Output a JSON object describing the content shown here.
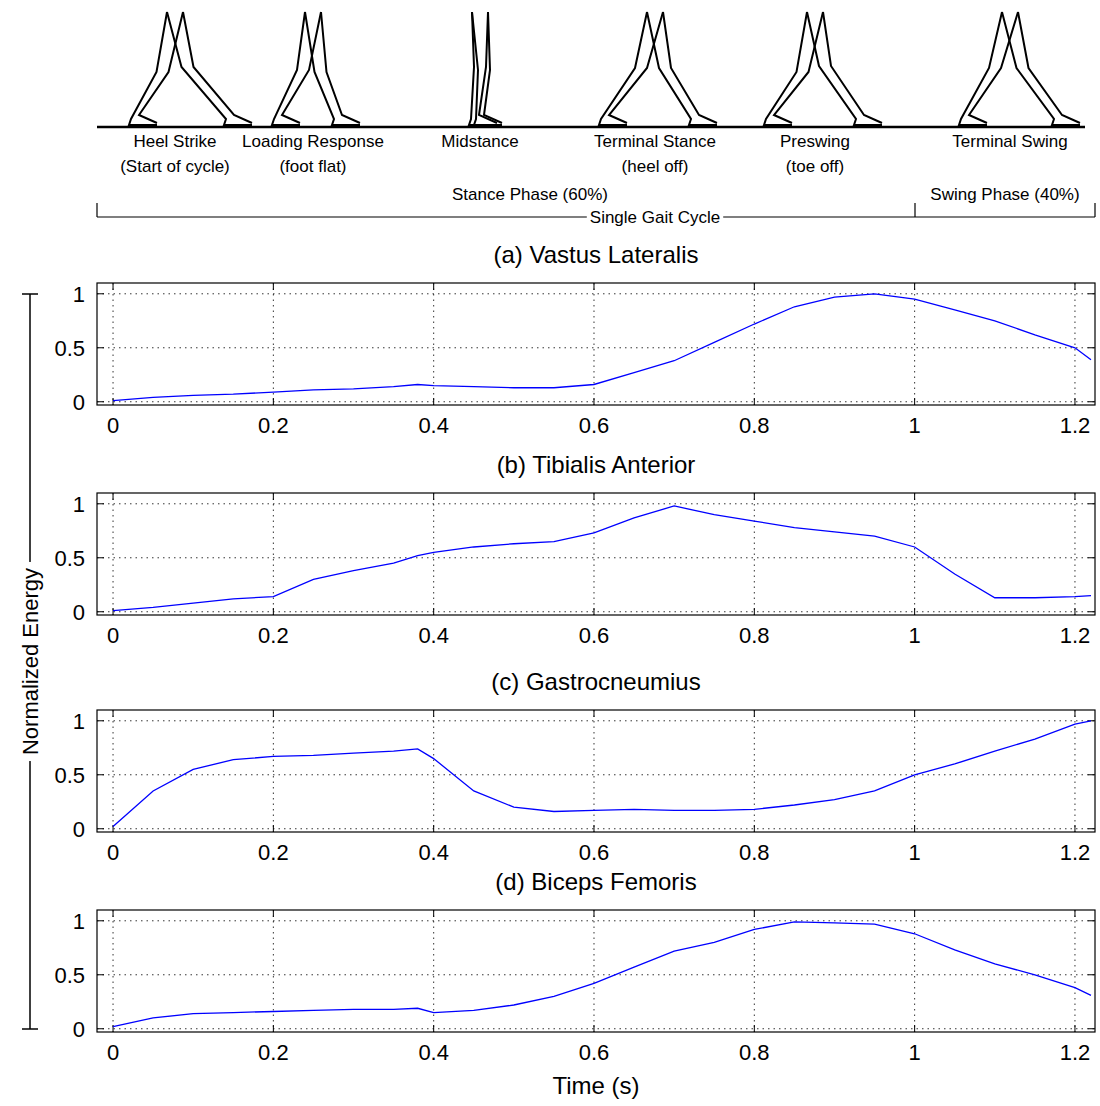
{
  "gait_diagram": {
    "phases": [
      {
        "label": "Heel Strike",
        "sublabel": "(Start of cycle)"
      },
      {
        "label": "Loading Response",
        "sublabel": "(foot flat)"
      },
      {
        "label": "Midstance"
      },
      {
        "label": "Terminal Stance",
        "sublabel": "(heel off)"
      },
      {
        "label": "Preswing",
        "sublabel": "(toe off)"
      },
      {
        "label": "Terminal Swing"
      }
    ],
    "stance_label": "Stance Phase (60%)",
    "swing_label": "Swing Phase (40%)",
    "cycle_label": "Single Gait Cycle"
  },
  "shared_y_label": "Normalized Energy",
  "chart_data": [
    {
      "type": "line",
      "title": "(a) Vastus Lateralis",
      "x": [
        0,
        0.05,
        0.1,
        0.15,
        0.2,
        0.25,
        0.3,
        0.35,
        0.38,
        0.4,
        0.45,
        0.5,
        0.55,
        0.6,
        0.65,
        0.7,
        0.75,
        0.8,
        0.85,
        0.9,
        0.95,
        1.0,
        1.05,
        1.1,
        1.15,
        1.2,
        1.22
      ],
      "series": [
        {
          "name": "Vastus Lateralis",
          "color": "#0000ff",
          "values": [
            0.01,
            0.04,
            0.06,
            0.07,
            0.09,
            0.11,
            0.12,
            0.14,
            0.16,
            0.15,
            0.14,
            0.13,
            0.13,
            0.16,
            0.27,
            0.38,
            0.55,
            0.72,
            0.88,
            0.97,
            1.0,
            0.95,
            0.85,
            0.75,
            0.62,
            0.5,
            0.39
          ]
        }
      ],
      "xlim": [
        -0.02,
        1.225
      ],
      "ylim": [
        -0.03,
        1.1
      ],
      "xticks": [
        0,
        0.2,
        0.4,
        0.6,
        0.8,
        1,
        1.2
      ],
      "yticks": [
        0,
        0.5,
        1
      ],
      "grid": true
    },
    {
      "type": "line",
      "title": "(b) Tibialis Anterior",
      "x": [
        0,
        0.05,
        0.1,
        0.15,
        0.2,
        0.25,
        0.3,
        0.35,
        0.38,
        0.4,
        0.45,
        0.5,
        0.55,
        0.6,
        0.65,
        0.7,
        0.75,
        0.8,
        0.85,
        0.9,
        0.95,
        1.0,
        1.05,
        1.1,
        1.15,
        1.2,
        1.22
      ],
      "series": [
        {
          "name": "Tibialis Anterior",
          "color": "#0000ff",
          "values": [
            0.01,
            0.04,
            0.08,
            0.12,
            0.14,
            0.3,
            0.38,
            0.45,
            0.52,
            0.55,
            0.6,
            0.63,
            0.65,
            0.73,
            0.87,
            0.98,
            0.9,
            0.84,
            0.78,
            0.74,
            0.7,
            0.6,
            0.35,
            0.13,
            0.13,
            0.14,
            0.15
          ]
        }
      ],
      "xlim": [
        -0.02,
        1.225
      ],
      "ylim": [
        -0.03,
        1.1
      ],
      "xticks": [
        0,
        0.2,
        0.4,
        0.6,
        0.8,
        1,
        1.2
      ],
      "yticks": [
        0,
        0.5,
        1
      ],
      "grid": true
    },
    {
      "type": "line",
      "title": "(c) Gastrocneumius",
      "x": [
        0,
        0.05,
        0.1,
        0.15,
        0.2,
        0.25,
        0.3,
        0.35,
        0.38,
        0.4,
        0.45,
        0.5,
        0.55,
        0.6,
        0.65,
        0.7,
        0.75,
        0.8,
        0.85,
        0.9,
        0.95,
        1.0,
        1.05,
        1.1,
        1.15,
        1.2,
        1.22
      ],
      "series": [
        {
          "name": "Gastrocneumius",
          "color": "#0000ff",
          "values": [
            0.02,
            0.35,
            0.55,
            0.64,
            0.67,
            0.68,
            0.7,
            0.72,
            0.74,
            0.65,
            0.35,
            0.2,
            0.16,
            0.17,
            0.18,
            0.17,
            0.17,
            0.18,
            0.22,
            0.27,
            0.35,
            0.5,
            0.6,
            0.72,
            0.83,
            0.97,
            1.0
          ]
        }
      ],
      "xlim": [
        -0.02,
        1.225
      ],
      "ylim": [
        -0.03,
        1.1
      ],
      "xticks": [
        0,
        0.2,
        0.4,
        0.6,
        0.8,
        1,
        1.2
      ],
      "yticks": [
        0,
        0.5,
        1
      ],
      "grid": true
    },
    {
      "type": "line",
      "title": "(d) Biceps Femoris",
      "x_label": "Time (s)",
      "x": [
        0,
        0.05,
        0.1,
        0.15,
        0.2,
        0.25,
        0.3,
        0.35,
        0.38,
        0.4,
        0.45,
        0.5,
        0.55,
        0.6,
        0.65,
        0.7,
        0.75,
        0.8,
        0.85,
        0.9,
        0.95,
        1.0,
        1.05,
        1.1,
        1.15,
        1.2,
        1.22
      ],
      "series": [
        {
          "name": "Biceps Femoris",
          "color": "#0000ff",
          "values": [
            0.02,
            0.1,
            0.14,
            0.15,
            0.16,
            0.17,
            0.18,
            0.18,
            0.19,
            0.15,
            0.17,
            0.22,
            0.3,
            0.42,
            0.57,
            0.72,
            0.8,
            0.92,
            0.99,
            0.98,
            0.97,
            0.88,
            0.73,
            0.6,
            0.5,
            0.38,
            0.31
          ]
        }
      ],
      "xlim": [
        -0.02,
        1.225
      ],
      "ylim": [
        -0.03,
        1.1
      ],
      "xticks": [
        0,
        0.2,
        0.4,
        0.6,
        0.8,
        1,
        1.2
      ],
      "yticks": [
        0,
        0.5,
        1
      ],
      "grid": true
    }
  ]
}
